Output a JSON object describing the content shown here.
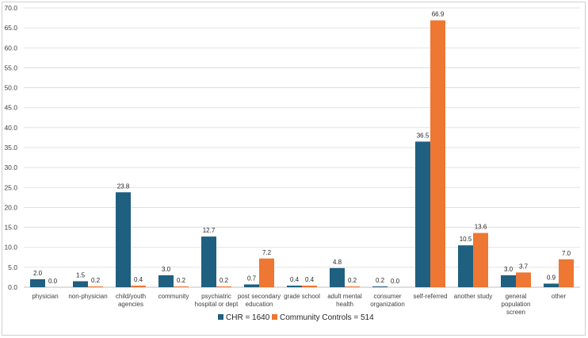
{
  "chart_data": {
    "type": "bar",
    "title": "",
    "xlabel": "",
    "ylabel": "",
    "ylim": [
      0,
      70
    ],
    "yticks": [
      "0.0",
      "5.0",
      "10.0",
      "15.0",
      "20.0",
      "25.0",
      "30.0",
      "35.0",
      "40.0",
      "45.0",
      "50.0",
      "55.0",
      "60.0",
      "65.0",
      "70.0"
    ],
    "grid": true,
    "legend_position": "bottom",
    "categories": [
      [
        "physician"
      ],
      [
        "non-physician"
      ],
      [
        "child/youth",
        "agencies"
      ],
      [
        "community"
      ],
      [
        "psychiatric",
        "hospital or dept"
      ],
      [
        "post secondary",
        "education"
      ],
      [
        "grade school"
      ],
      [
        "adult mental",
        "health"
      ],
      [
        "consumer",
        "organization"
      ],
      [
        "self-referred"
      ],
      [
        "another study"
      ],
      [
        "general",
        "population",
        "screen"
      ],
      [
        "other"
      ]
    ],
    "series": [
      {
        "name": "CHR = 1640",
        "color": "#1f5f7f",
        "values": [
          2.0,
          1.5,
          23.8,
          3.0,
          12.7,
          0.7,
          0.4,
          4.8,
          0.2,
          36.5,
          10.5,
          3.0,
          0.9
        ],
        "labels": [
          "2.0",
          "1.5",
          "23.8",
          "3.0",
          "12.7",
          "0.7",
          "0.4",
          "4.8",
          "0.2",
          "36.5",
          "10.5",
          "3.0",
          "0.9"
        ]
      },
      {
        "name": "Community Controls = 514",
        "color": "#ed7733",
        "values": [
          0.0,
          0.2,
          0.4,
          0.2,
          0.2,
          7.2,
          0.4,
          0.2,
          0.0,
          66.9,
          13.6,
          3.7,
          7.0
        ],
        "labels": [
          "0.0",
          "0.2",
          "0.4",
          "0.2",
          "0.2",
          "7.2",
          "0.4",
          "0.2",
          "0.0",
          "66.9",
          "13.6",
          "3.7",
          "7.0"
        ]
      }
    ]
  }
}
